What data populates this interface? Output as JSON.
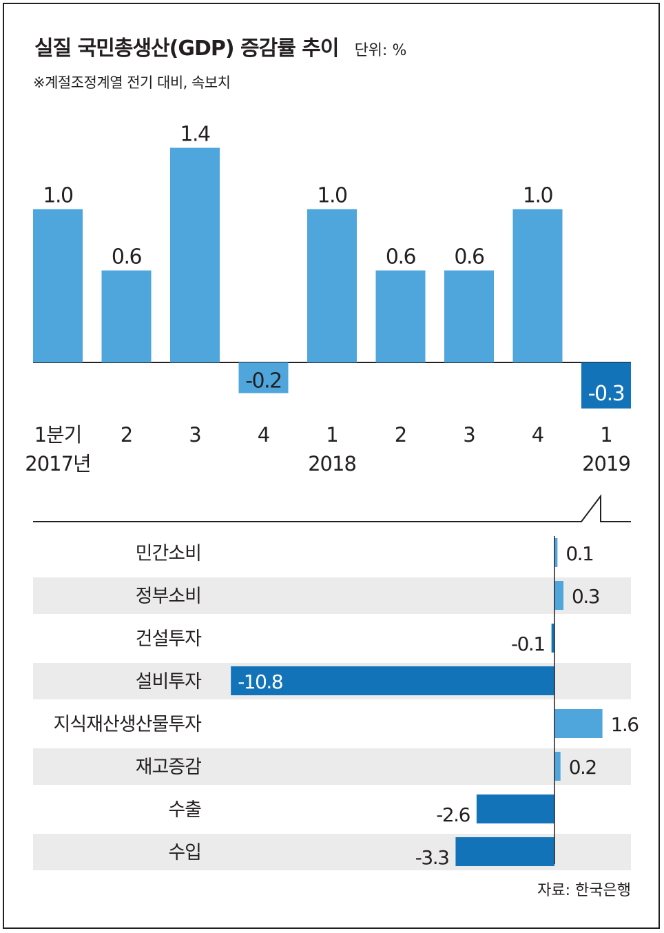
{
  "title": "실질 국민총생산(GDP) 증감률 추이",
  "unit_label": "단위: %",
  "note": "※계절조정계열 전기 대비, 속보치",
  "source": "자료: 한국은행",
  "colors": {
    "positive": "#4ea6dc",
    "negative": "#1273b9",
    "row_band": "#ebebeb",
    "axis": "#231f20"
  },
  "chart_data": [
    {
      "type": "bar",
      "title": "실질 국민총생산(GDP) 증감률 추이",
      "unit": "%",
      "categories": [
        "1분기",
        "2",
        "3",
        "4",
        "1",
        "2",
        "3",
        "4",
        "1"
      ],
      "year_labels": [
        "2017년",
        "",
        "",
        "",
        "2018",
        "",
        "",
        "",
        "2019"
      ],
      "values": [
        1.0,
        0.6,
        1.4,
        -0.2,
        1.0,
        0.6,
        0.6,
        1.0,
        -0.3
      ],
      "value_labels": [
        "1.0",
        "0.6",
        "1.4",
        "-0.2",
        "1.0",
        "0.6",
        "0.6",
        "1.0",
        "-0.3"
      ],
      "ylim": [
        -0.3,
        1.4
      ],
      "grid": false,
      "legend": "none"
    },
    {
      "type": "bar",
      "orientation": "horizontal",
      "categories": [
        "민간소비",
        "정부소비",
        "건설투자",
        "설비투자",
        "지식재산생산물투자",
        "재고증감",
        "수출",
        "수입"
      ],
      "values": [
        0.1,
        0.3,
        -0.1,
        -10.8,
        1.6,
        0.2,
        -2.6,
        -3.3
      ],
      "value_labels": [
        "0.1",
        "0.3",
        "-0.1",
        "-10.8",
        "1.6",
        "0.2",
        "-2.6",
        "-3.3"
      ],
      "xlim": [
        -10.8,
        1.6
      ],
      "grid": false,
      "legend": "none"
    }
  ]
}
